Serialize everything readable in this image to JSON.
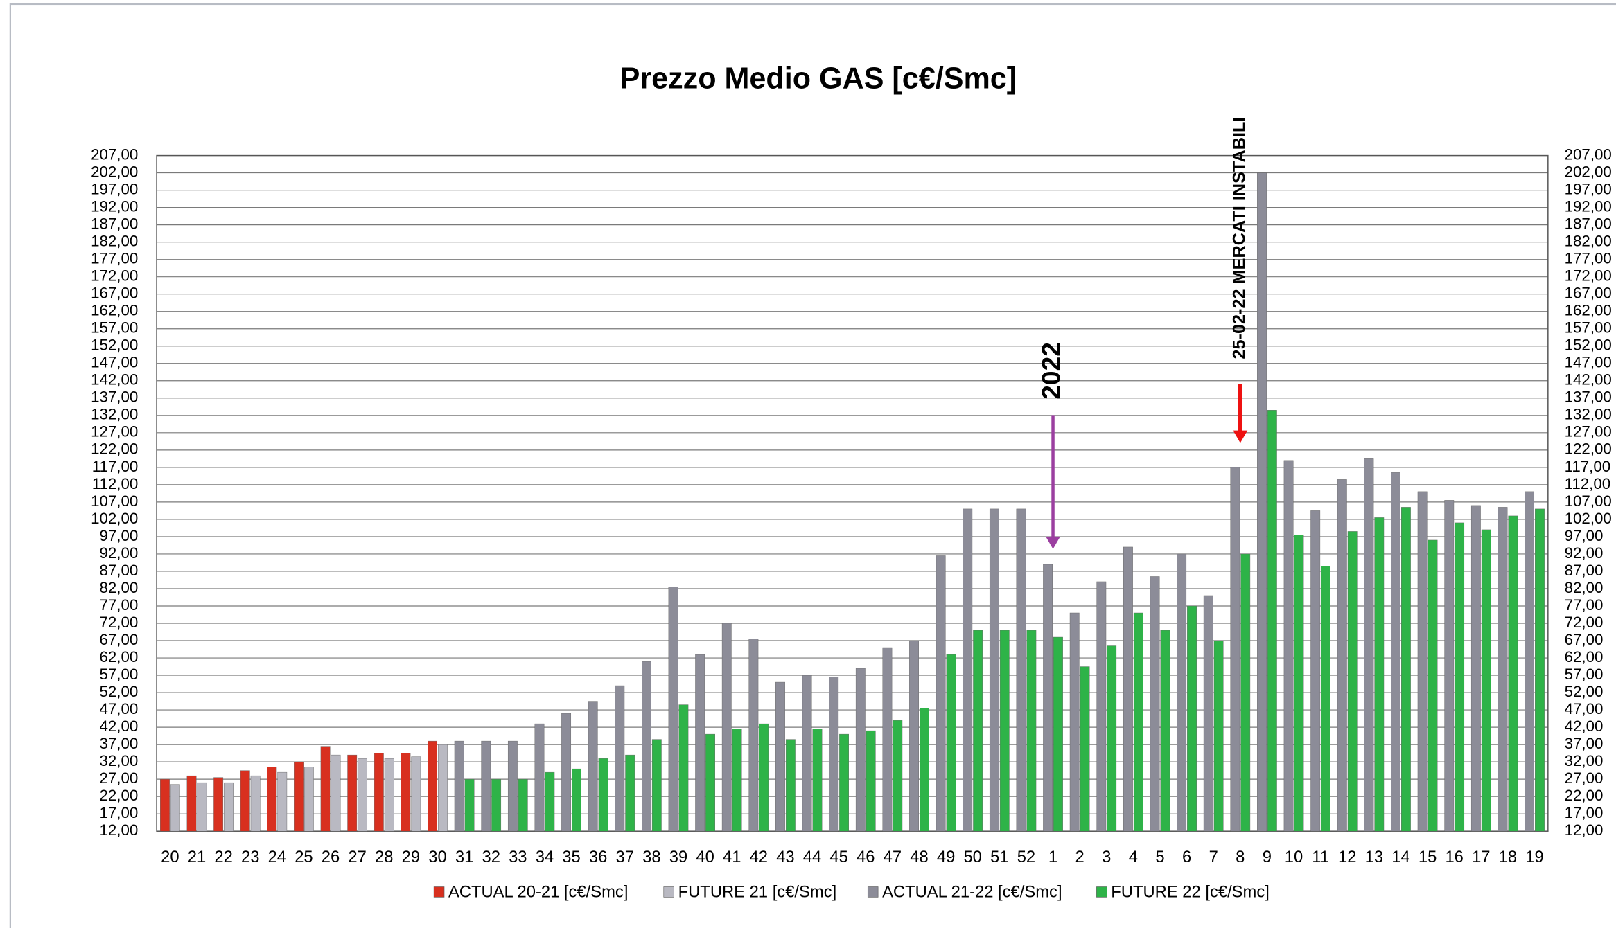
{
  "chart_data": {
    "type": "bar",
    "title": "Prezzo Medio GAS [c€/Smc]",
    "categories": [
      "20",
      "21",
      "22",
      "23",
      "24",
      "25",
      "26",
      "27",
      "28",
      "29",
      "30",
      "31",
      "32",
      "33",
      "34",
      "35",
      "36",
      "37",
      "38",
      "39",
      "40",
      "41",
      "42",
      "43",
      "44",
      "45",
      "46",
      "47",
      "48",
      "49",
      "50",
      "51",
      "52",
      "1",
      "2",
      "3",
      "4",
      "5",
      "6",
      "7",
      "8",
      "9",
      "10",
      "11",
      "12",
      "13",
      "14",
      "15",
      "16",
      "17",
      "18",
      "19"
    ],
    "series": [
      {
        "name": "ACTUAL 20-21 [c€/Smc]",
        "color": "#d8301f",
        "values": [
          27,
          28,
          27.5,
          29.5,
          30.5,
          32,
          36.5,
          34,
          34.5,
          34.5,
          38,
          null,
          null,
          null,
          null,
          null,
          null,
          null,
          null,
          null,
          null,
          null,
          null,
          null,
          null,
          null,
          null,
          null,
          null,
          null,
          null,
          null,
          null,
          null,
          null,
          null,
          null,
          null,
          null,
          null,
          null,
          null,
          null,
          null,
          null,
          null,
          null,
          null,
          null,
          null,
          null,
          null
        ]
      },
      {
        "name": "FUTURE 21 [c€/Smc]",
        "color": "#b9b9c2",
        "values": [
          25.5,
          26,
          26,
          28,
          29,
          30.5,
          34,
          33,
          33,
          33.5,
          37,
          null,
          null,
          null,
          null,
          null,
          null,
          null,
          null,
          null,
          null,
          null,
          null,
          null,
          null,
          null,
          null,
          null,
          null,
          null,
          null,
          null,
          null,
          null,
          null,
          null,
          null,
          null,
          null,
          null,
          null,
          null,
          null,
          null,
          null,
          null,
          null,
          null,
          null,
          null,
          null,
          null
        ]
      },
      {
        "name": "ACTUAL 21-22 [c€/Smc]",
        "color": "#8c8c98",
        "values": [
          null,
          null,
          null,
          null,
          null,
          null,
          null,
          null,
          null,
          null,
          null,
          38,
          38,
          38,
          43,
          46,
          49.5,
          54,
          61,
          82.5,
          63,
          72,
          67.5,
          55,
          57,
          56.5,
          59,
          65,
          67,
          91.5,
          105,
          105,
          105,
          89,
          75,
          84,
          94,
          85.5,
          92,
          80,
          117,
          202,
          119,
          104.5,
          113.5,
          119.5,
          115.5,
          110,
          107.5,
          106,
          105.5,
          110
        ]
      },
      {
        "name": "FUTURE 22 [c€/Smc]",
        "color": "#2eb348",
        "values": [
          null,
          null,
          null,
          null,
          null,
          null,
          null,
          null,
          null,
          null,
          null,
          27,
          27,
          27,
          29,
          30,
          33,
          34,
          38.5,
          48.5,
          40,
          41.5,
          43,
          38.5,
          41.5,
          40,
          41,
          44,
          47.5,
          63,
          70,
          70,
          70,
          68,
          59.5,
          65.5,
          75,
          70,
          77,
          67,
          92,
          133.5,
          97.5,
          88.5,
          98.5,
          102.5,
          105.5,
          96,
          101,
          99,
          103,
          105
        ]
      }
    ],
    "ylim": [
      12,
      207
    ],
    "yticks": [
      {
        "value": 12,
        "label": "12,00"
      },
      {
        "value": 17,
        "label": "17,00"
      },
      {
        "value": 22,
        "label": "22,00"
      },
      {
        "value": 27,
        "label": "27,00"
      },
      {
        "value": 32,
        "label": "32,00"
      },
      {
        "value": 37,
        "label": "37,00"
      },
      {
        "value": 42,
        "label": "42,00"
      },
      {
        "value": 47,
        "label": "47,00"
      },
      {
        "value": 52,
        "label": "52,00"
      },
      {
        "value": 57,
        "label": "57,00"
      },
      {
        "value": 62,
        "label": "62,00"
      },
      {
        "value": 67,
        "label": "67,00"
      },
      {
        "value": 72,
        "label": "72,00"
      },
      {
        "value": 77,
        "label": "77,00"
      },
      {
        "value": 82,
        "label": "82,00"
      },
      {
        "value": 87,
        "label": "87,00"
      },
      {
        "value": 92,
        "label": "92,00"
      },
      {
        "value": 97,
        "label": "97,00"
      },
      {
        "value": 102,
        "label": "102,00"
      },
      {
        "value": 107,
        "label": "107,00"
      },
      {
        "value": 112,
        "label": "112,00"
      },
      {
        "value": 117,
        "label": "117,00"
      },
      {
        "value": 122,
        "label": "122,00"
      },
      {
        "value": 127,
        "label": "127,00"
      },
      {
        "value": 132,
        "label": "132,00"
      },
      {
        "value": 137,
        "label": "137,00"
      },
      {
        "value": 142,
        "label": "142,00"
      },
      {
        "value": 147,
        "label": "147,00"
      },
      {
        "value": 152,
        "label": "152,00"
      },
      {
        "value": 157,
        "label": "157,00"
      },
      {
        "value": 162,
        "label": "162,00"
      },
      {
        "value": 167,
        "label": "167,00"
      },
      {
        "value": 172,
        "label": "172,00"
      },
      {
        "value": 177,
        "label": "177,00"
      },
      {
        "value": 182,
        "label": "182,00"
      },
      {
        "value": 187,
        "label": "187,00"
      },
      {
        "value": 192,
        "label": "192,00"
      },
      {
        "value": 197,
        "label": "197,00"
      },
      {
        "value": 202,
        "label": "202,00"
      },
      {
        "value": 207,
        "label": "207,00"
      }
    ],
    "grid": true,
    "legend": "bottom",
    "annotations": [
      {
        "text": "2022",
        "category": 33
      },
      {
        "text": "25-02-22 MERCATI INSTABILI",
        "category": 40
      }
    ]
  }
}
